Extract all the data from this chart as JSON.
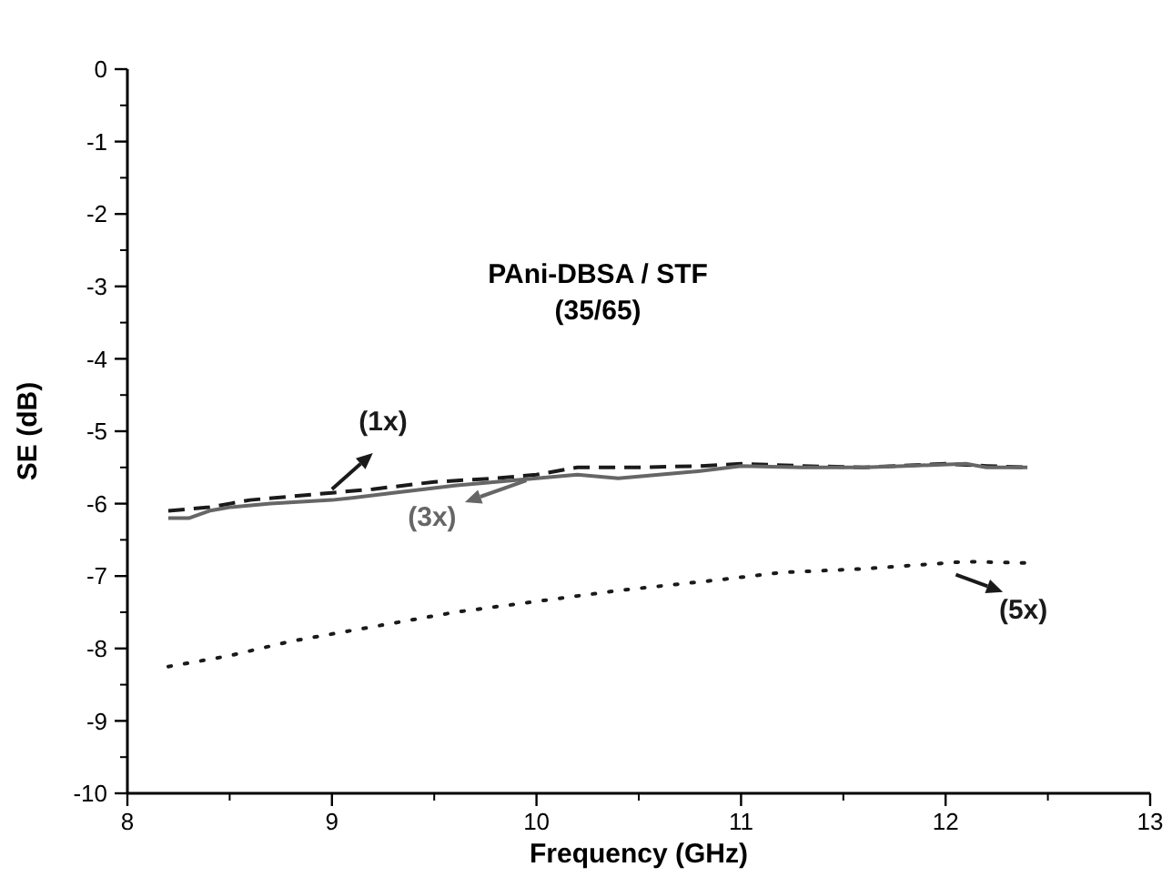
{
  "chart_data": {
    "type": "line",
    "title": "PAni-DBSA / STF",
    "subtitle": "(35/65)",
    "xlabel": "Frequency (GHz)",
    "ylabel": "SE (dB)",
    "xlim": [
      8,
      13
    ],
    "ylim": [
      -10,
      0
    ],
    "xticks": [
      8,
      9,
      10,
      11,
      12,
      13
    ],
    "yticks": [
      -10,
      -9,
      -8,
      -7,
      -6,
      -5,
      -4,
      -3,
      -2,
      -1,
      0
    ],
    "grid": false,
    "legend": "right",
    "marker": "none",
    "series": [
      {
        "name": "(1x)",
        "color": "#1a1a1a",
        "line_style": "dashed",
        "x": [
          8.2,
          8.4,
          8.6,
          8.8,
          9,
          9.2,
          9.5,
          9.8,
          10,
          10.2,
          10.5,
          10.8,
          11,
          11.3,
          11.6,
          12,
          12.2,
          12.4
        ],
        "values": [
          -6.1,
          -6.05,
          -5.95,
          -5.9,
          -5.85,
          -5.8,
          -5.7,
          -5.65,
          -5.6,
          -5.5,
          -5.5,
          -5.48,
          -5.45,
          -5.48,
          -5.5,
          -5.45,
          -5.48,
          -5.5
        ]
      },
      {
        "name": "(3x)",
        "color": "#666666",
        "line_style": "solid",
        "x": [
          8.2,
          8.3,
          8.4,
          8.5,
          8.7,
          9,
          9.1,
          9.3,
          9.6,
          9.8,
          10,
          10.2,
          10.4,
          10.6,
          10.8,
          11,
          11.3,
          11.6,
          11.8,
          12.1,
          12.2,
          12.4
        ],
        "values": [
          -6.2,
          -6.2,
          -6.1,
          -6.05,
          -6.0,
          -5.95,
          -5.92,
          -5.85,
          -5.75,
          -5.7,
          -5.65,
          -5.6,
          -5.65,
          -5.6,
          -5.55,
          -5.48,
          -5.5,
          -5.5,
          -5.48,
          -5.45,
          -5.5,
          -5.5
        ]
      },
      {
        "name": "(5x)",
        "color": "#1a1a1a",
        "line_style": "dotted",
        "x": [
          8.2,
          8.5,
          8.8,
          9.2,
          9.6,
          10,
          10.4,
          10.9,
          11.2,
          11.6,
          12.1,
          12.4
        ],
        "values": [
          -8.25,
          -8.1,
          -7.9,
          -7.7,
          -7.5,
          -7.35,
          -7.2,
          -7.05,
          -6.95,
          -6.9,
          -6.8,
          -6.82
        ]
      }
    ]
  }
}
